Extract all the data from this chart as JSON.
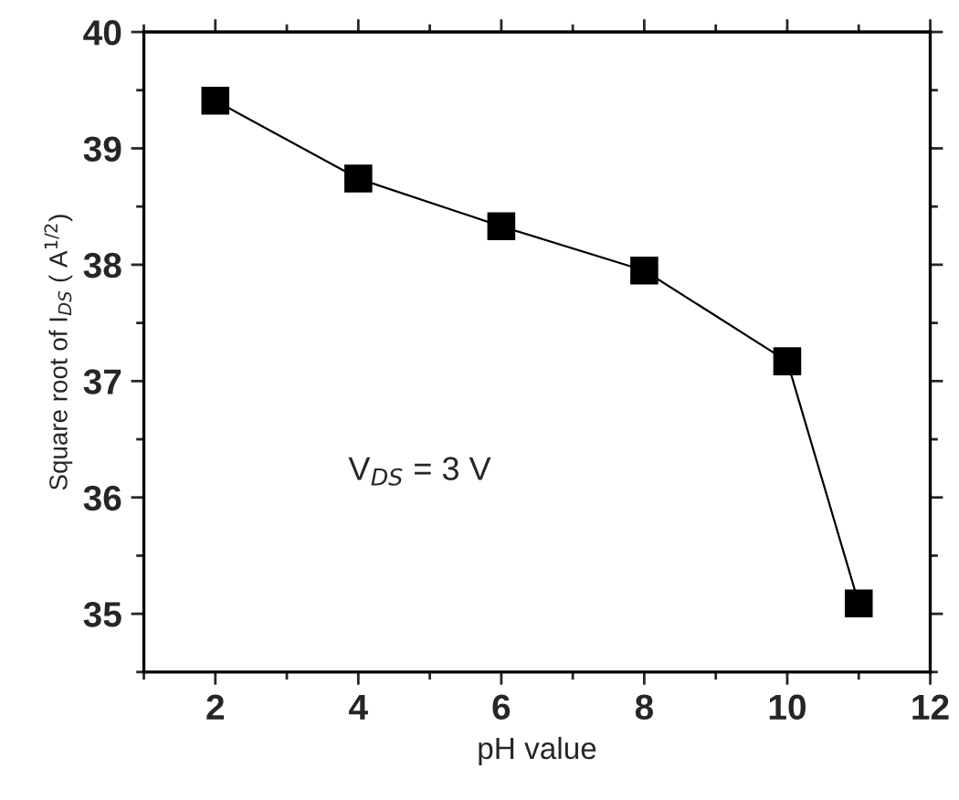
{
  "chart_data": {
    "type": "line",
    "xlabel": "pH value",
    "ylabel": "Square root of I$_{DS}$ ( A$^{1/2}$)",
    "x": [
      2,
      4,
      6,
      8,
      10,
      11
    ],
    "series": [
      {
        "color": "#000000",
        "values": [
          39.41,
          38.74,
          38.33,
          37.95,
          37.17,
          35.09
        ]
      }
    ],
    "xlim": [
      1,
      12
    ],
    "xticks": [
      2,
      4,
      6,
      8,
      10,
      12
    ],
    "ylim": [
      34.5,
      40
    ],
    "yticks": [
      35,
      36,
      37,
      38,
      39,
      40
    ],
    "marker": "square",
    "line_style": "solid",
    "grid": false,
    "legend": false,
    "annotations": [
      "V$_{DS}$ = 3 V"
    ]
  }
}
